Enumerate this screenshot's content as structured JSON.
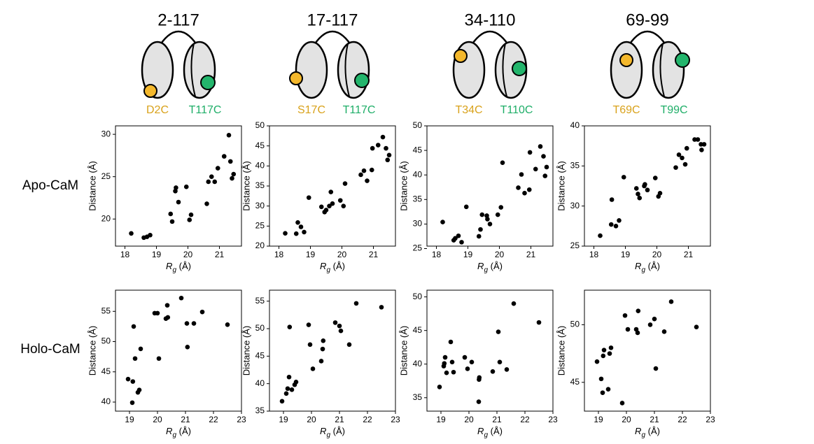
{
  "columns": [
    {
      "title": "2-117",
      "left_label": "D2C",
      "right_label": "T117C"
    },
    {
      "title": "17-117",
      "left_label": "S17C",
      "right_label": "T117C"
    },
    {
      "title": "34-110",
      "left_label": "T34C",
      "right_label": "T110C"
    },
    {
      "title": "69-99",
      "left_label": "T69C",
      "right_label": "T99C"
    }
  ],
  "rows": [
    "Apo-CaM",
    "Holo-CaM"
  ],
  "chart_data": [
    {
      "type": "scatter",
      "color": "#000000",
      "x": [
        18.2,
        18.6,
        18.7,
        18.8,
        19.45,
        19.5,
        19.6,
        19.62,
        19.7,
        19.95,
        20.05,
        20.1,
        20.6,
        20.65,
        20.75,
        20.85,
        20.95,
        21.15,
        21.3,
        21.35,
        21.4,
        21.45
      ],
      "y": [
        18.3,
        17.8,
        17.9,
        18.1,
        20.6,
        19.7,
        23.3,
        23.7,
        22,
        23.8,
        19.9,
        20.5,
        21.8,
        24.4,
        25,
        24.4,
        26,
        27.4,
        29.9,
        26.8,
        24.8,
        25.3
      ],
      "xlim": [
        17.7,
        21.7
      ],
      "xticks": [
        18,
        19,
        20,
        21
      ],
      "ylim": [
        16.8,
        31
      ],
      "yticks": [
        20,
        25,
        30
      ],
      "x_label": {
        "symbol": "R",
        "subscript": "g",
        "unit": " (Å)"
      },
      "y_label": "Distance (Å)"
    },
    {
      "type": "scatter",
      "color": "#000000",
      "x": [
        18.2,
        18.55,
        18.6,
        18.7,
        18.8,
        18.95,
        19.35,
        19.45,
        19.5,
        19.6,
        19.65,
        19.7,
        19.95,
        20.05,
        20.1,
        20.6,
        20.7,
        20.8,
        20.95,
        20.97,
        21.15,
        21.3,
        21.4,
        21.45,
        21.5
      ],
      "y": [
        23.2,
        23.1,
        25.9,
        24.8,
        23.5,
        32.1,
        29.8,
        28.5,
        29,
        30,
        33.5,
        30.6,
        31.4,
        30,
        35.6,
        37.8,
        38.8,
        36.3,
        39,
        44.4,
        45.2,
        47.2,
        44.4,
        41.5,
        42.7
      ],
      "xlim": [
        17.7,
        21.7
      ],
      "xticks": [
        18,
        19,
        20,
        21
      ],
      "ylim": [
        20,
        50
      ],
      "yticks": [
        20,
        25,
        30,
        35,
        40,
        45,
        50
      ],
      "x_label": {
        "symbol": "R",
        "subscript": "g",
        "unit": " (Å)"
      },
      "y_label": "Distance (Å)"
    },
    {
      "type": "scatter",
      "color": "#000000",
      "x": [
        18.2,
        18.55,
        18.6,
        18.7,
        18.8,
        18.95,
        19.35,
        19.4,
        19.45,
        19.6,
        19.62,
        19.7,
        19.95,
        20.05,
        20.1,
        20.6,
        20.7,
        20.8,
        20.95,
        20.97,
        21.15,
        21.3,
        21.4,
        21.45,
        21.5
      ],
      "y": [
        30.4,
        26.7,
        27.1,
        27.6,
        26.3,
        33.5,
        27.5,
        28.9,
        31.9,
        31.7,
        31,
        30,
        31.9,
        33.4,
        42.5,
        37.4,
        40.1,
        36.3,
        37,
        44.6,
        41.2,
        45.8,
        43.8,
        39.8,
        41.6
      ],
      "xlim": [
        17.7,
        21.7
      ],
      "xticks": [
        18,
        19,
        20,
        21
      ],
      "ylim": [
        25.5,
        50
      ],
      "yticks": [
        25,
        30,
        35,
        40,
        45,
        50
      ],
      "x_label": {
        "symbol": "R",
        "subscript": "g",
        "unit": " (Å)"
      },
      "y_label": "Distance (Å)"
    },
    {
      "type": "scatter",
      "color": "#000000",
      "x": [
        18.2,
        18.55,
        18.57,
        18.7,
        18.8,
        18.95,
        19.35,
        19.4,
        19.45,
        19.6,
        19.62,
        19.7,
        19.95,
        20.05,
        20.1,
        20.6,
        20.7,
        20.8,
        20.9,
        20.95,
        21.2,
        21.3,
        21.4,
        21.42,
        21.5
      ],
      "y": [
        26.3,
        27.7,
        30.8,
        27.5,
        28.2,
        33.6,
        32.2,
        31.5,
        31,
        32.5,
        32.7,
        32,
        33.5,
        31.2,
        31.6,
        34.8,
        36.4,
        36,
        35.2,
        37.2,
        38.3,
        38.3,
        37.7,
        37,
        37.7
      ],
      "xlim": [
        17.7,
        21.7
      ],
      "xticks": [
        18,
        19,
        20,
        21
      ],
      "ylim": [
        25,
        40
      ],
      "yticks": [
        25,
        30,
        35,
        40
      ],
      "x_label": {
        "symbol": "R",
        "subscript": "g",
        "unit": " (Å)"
      },
      "y_label": "Distance (Å)"
    },
    {
      "type": "scatter",
      "color": "#000000",
      "x": [
        18.95,
        19.1,
        19.12,
        19.15,
        19.2,
        19.3,
        19.35,
        19.4,
        19.9,
        20,
        20.05,
        20.3,
        20.35,
        20.37,
        20.85,
        21.05,
        21.07,
        21.3,
        21.6,
        22.5
      ],
      "y": [
        43.8,
        39.9,
        43.4,
        52.5,
        47.2,
        41.6,
        42,
        48.8,
        54.7,
        54.7,
        47.2,
        53.8,
        56,
        54,
        57.2,
        53,
        49.1,
        53,
        54.9,
        52.8
      ],
      "xlim": [
        18.5,
        23
      ],
      "xticks": [
        19,
        20,
        21,
        22,
        23
      ],
      "ylim": [
        38.5,
        58.5
      ],
      "yticks": [
        40,
        45,
        50,
        55
      ],
      "x_label": {
        "symbol": "R",
        "subscript": "g",
        "unit": " (Å)"
      },
      "y_label": "Distance (Å)"
    },
    {
      "type": "scatter",
      "color": "#000000",
      "x": [
        18.95,
        19.1,
        19.15,
        19.2,
        19.22,
        19.3,
        19.4,
        19.45,
        19.9,
        19.95,
        20.05,
        20.35,
        20.4,
        20.42,
        20.85,
        21,
        21.05,
        21.35,
        21.6,
        22.5
      ],
      "y": [
        36.8,
        38.2,
        39.1,
        41.2,
        50.3,
        38.9,
        39.8,
        40.3,
        50.7,
        47.1,
        42.7,
        44.1,
        46.3,
        47.8,
        51.1,
        50.5,
        49.6,
        47.1,
        54.6,
        53.9
      ],
      "xlim": [
        18.5,
        23
      ],
      "xticks": [
        19,
        20,
        21,
        22,
        23
      ],
      "ylim": [
        35,
        57
      ],
      "yticks": [
        35,
        40,
        45,
        50,
        55
      ],
      "x_label": {
        "symbol": "R",
        "subscript": "g",
        "unit": " (Å)"
      },
      "y_label": "Distance (Å)"
    },
    {
      "type": "scatter",
      "color": "#000000",
      "x": [
        18.95,
        19.1,
        19.12,
        19.15,
        19.2,
        19.35,
        19.4,
        19.45,
        19.85,
        19.95,
        20.1,
        20.35,
        20.36,
        20.37,
        20.85,
        21.05,
        21.1,
        21.35,
        21.6,
        22.5
      ],
      "y": [
        36.6,
        39.7,
        40.1,
        41,
        38.7,
        43.3,
        40.3,
        38.8,
        41,
        39.3,
        40.3,
        34.4,
        37.7,
        38,
        38.9,
        44.8,
        40.3,
        39.2,
        49,
        46.2
      ],
      "xlim": [
        18.5,
        23
      ],
      "xticks": [
        19,
        20,
        21,
        22,
        23
      ],
      "ylim": [
        33,
        51
      ],
      "yticks": [
        35,
        40,
        45,
        50
      ],
      "x_label": {
        "symbol": "R",
        "subscript": "g",
        "unit": " (Å)"
      },
      "y_label": "Distance (Å)"
    },
    {
      "type": "scatter",
      "color": "#000000",
      "x": [
        18.95,
        19.1,
        19.15,
        19.17,
        19.2,
        19.35,
        19.4,
        19.45,
        19.85,
        19.95,
        20.05,
        20.35,
        20.4,
        20.42,
        20.85,
        21,
        21.05,
        21.35,
        21.6,
        22.5
      ],
      "y": [
        46.8,
        45.3,
        44.1,
        47.3,
        47.8,
        44.4,
        47.5,
        48,
        43.2,
        50.8,
        49.6,
        49.6,
        49.3,
        51.2,
        50,
        50.5,
        46.2,
        49.4,
        52,
        49.8
      ],
      "xlim": [
        18.5,
        23
      ],
      "xticks": [
        19,
        20,
        21,
        22,
        23
      ],
      "ylim": [
        42.5,
        53
      ],
      "yticks": [
        45,
        50
      ],
      "x_label": {
        "symbol": "R",
        "subscript": "g",
        "unit": " (Å)"
      },
      "y_label": "Distance (Å)"
    }
  ]
}
